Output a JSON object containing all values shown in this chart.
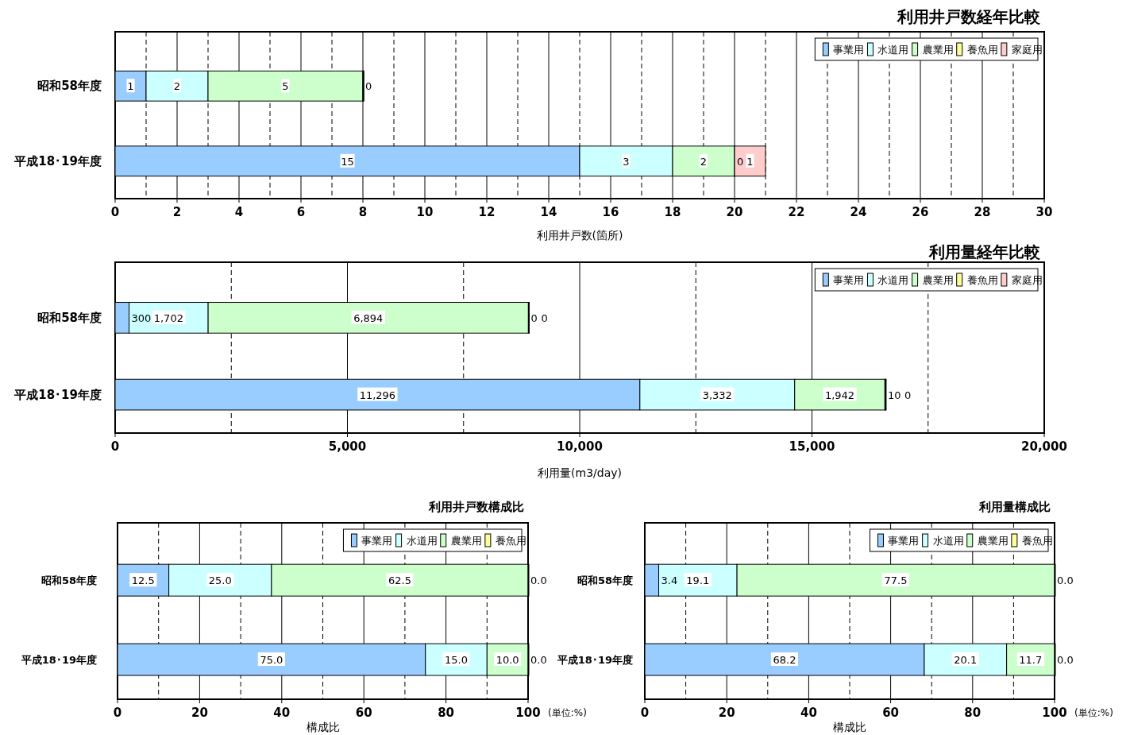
{
  "chart_data": [
    {
      "type": "bar",
      "orientation": "horizontal",
      "stacked": true,
      "title": "利用井戸数経年比較",
      "xlabel": "利用井戸数(箇所)",
      "categories": [
        "昭和58年度",
        "平成18･19年度"
      ],
      "series": [
        {
          "name": "事業用",
          "color": "#99ccff",
          "values": [
            1,
            15
          ],
          "value_labels": [
            "1",
            "15"
          ]
        },
        {
          "name": "水道用",
          "color": "#ccffff",
          "values": [
            2,
            3
          ],
          "value_labels": [
            "2",
            "3"
          ]
        },
        {
          "name": "農業用",
          "color": "#ccffcc",
          "values": [
            5,
            2
          ],
          "value_labels": [
            "5",
            "2"
          ]
        },
        {
          "name": "養魚用",
          "color": "#ffff99",
          "values": [
            0,
            0
          ],
          "value_labels": [
            "0",
            "0"
          ]
        },
        {
          "name": "家庭用",
          "color": "#ffcccc",
          "values": [
            0,
            1
          ],
          "value_labels": [
            null,
            "1"
          ]
        }
      ],
      "xlim": [
        0,
        30
      ],
      "xticks": [
        0,
        2,
        4,
        6,
        8,
        10,
        12,
        14,
        16,
        18,
        20,
        22,
        24,
        26,
        28,
        30
      ],
      "grid": "x",
      "legend": "top right"
    },
    {
      "type": "bar",
      "orientation": "horizontal",
      "stacked": true,
      "title": "利用量経年比較",
      "xlabel": "利用量(m3/day)",
      "categories": [
        "昭和58年度",
        "平成18･19年度"
      ],
      "series": [
        {
          "name": "事業用",
          "color": "#99ccff",
          "values": [
            300,
            11296
          ],
          "value_labels": [
            "300",
            "11,296"
          ]
        },
        {
          "name": "水道用",
          "color": "#ccffff",
          "values": [
            1702,
            3332
          ],
          "value_labels": [
            "1,702",
            "3,332"
          ]
        },
        {
          "name": "農業用",
          "color": "#ccffcc",
          "values": [
            6894,
            1942
          ],
          "value_labels": [
            "6,894",
            "1,942"
          ]
        },
        {
          "name": "養魚用",
          "color": "#ffff99",
          "values": [
            0,
            10
          ],
          "value_labels": [
            "0",
            "10"
          ]
        },
        {
          "name": "家庭用",
          "color": "#ffcccc",
          "values": [
            0,
            0
          ],
          "value_labels": [
            "0",
            "0"
          ]
        }
      ],
      "xlim": [
        0,
        20000
      ],
      "xticks": [
        0,
        {
          "value": 5000,
          "label": "5,000"
        },
        {
          "value": 10000,
          "label": "10,000"
        },
        {
          "value": 15000,
          "label": "15,000"
        },
        {
          "value": 20000,
          "label": "20,000"
        }
      ],
      "grid": "x",
      "legend": "top right"
    },
    {
      "type": "bar",
      "orientation": "horizontal",
      "stacked": true,
      "title": "利用井戸数構成比",
      "xlabel": "構成比",
      "annotations": [
        "(単位:%)"
      ],
      "categories": [
        "昭和58年度",
        "平成18･19年度"
      ],
      "series": [
        {
          "name": "事業用",
          "color": "#99ccff",
          "values": [
            12.5,
            75.0
          ],
          "value_labels": [
            "12.5",
            "75.0"
          ]
        },
        {
          "name": "水道用",
          "color": "#ccffff",
          "values": [
            25.0,
            15.0
          ],
          "value_labels": [
            "25.0",
            "15.0"
          ]
        },
        {
          "name": "農業用",
          "color": "#ccffcc",
          "values": [
            62.5,
            10.0
          ],
          "value_labels": [
            "62.5",
            "10.0"
          ]
        },
        {
          "name": "養魚用",
          "color": "#ffff99",
          "values": [
            0.0,
            0.0
          ],
          "value_labels": [
            "0.0",
            "0.0"
          ]
        }
      ],
      "xlim": [
        0,
        100
      ],
      "xticks": [
        0,
        20,
        40,
        60,
        80,
        100
      ],
      "grid": "x",
      "legend": "top right"
    },
    {
      "type": "bar",
      "orientation": "horizontal",
      "stacked": true,
      "title": "利用量構成比",
      "xlabel": "構成比",
      "annotations": [
        "(単位:%)"
      ],
      "categories": [
        "昭和58年度",
        "平成18･19年度"
      ],
      "series": [
        {
          "name": "事業用",
          "color": "#99ccff",
          "values": [
            3.4,
            68.2
          ],
          "value_labels": [
            "3.4",
            "68.2"
          ]
        },
        {
          "name": "水道用",
          "color": "#ccffff",
          "values": [
            19.1,
            20.1
          ],
          "value_labels": [
            "19.1",
            "20.1"
          ]
        },
        {
          "name": "農業用",
          "color": "#ccffcc",
          "values": [
            77.5,
            11.7
          ],
          "value_labels": [
            "77.5",
            "11.7"
          ]
        },
        {
          "name": "養魚用",
          "color": "#ffff99",
          "values": [
            0.0,
            0.0
          ],
          "value_labels": [
            "0.0",
            "0.0"
          ]
        }
      ],
      "xlim": [
        0,
        100
      ],
      "xticks": [
        0,
        20,
        40,
        60,
        80,
        100
      ],
      "grid": "x",
      "legend": "top right"
    }
  ]
}
